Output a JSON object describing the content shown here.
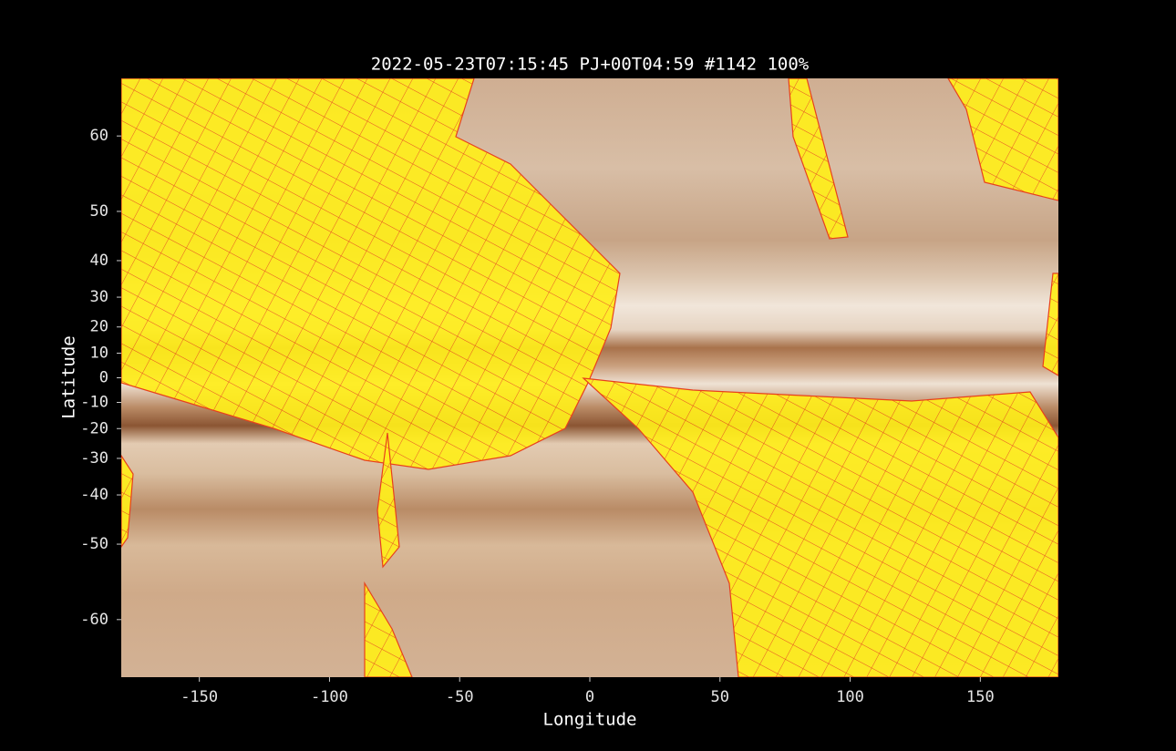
{
  "chart_data": {
    "type": "map",
    "title": "2022-05-23T07:15:45   PJ+00T04:59 #1142 100%",
    "x_label": "Longitude",
    "y_label": "Latitude",
    "xlim": [
      -180,
      180
    ],
    "xticks": [
      -150,
      -100,
      -50,
      0,
      50,
      100,
      150
    ],
    "ylim": [
      -65,
      65
    ],
    "yscale": "tan",
    "yticks": [
      -60,
      -50,
      -40,
      -30,
      -20,
      -10,
      0,
      10,
      20,
      30,
      40,
      50,
      60
    ]
  }
}
